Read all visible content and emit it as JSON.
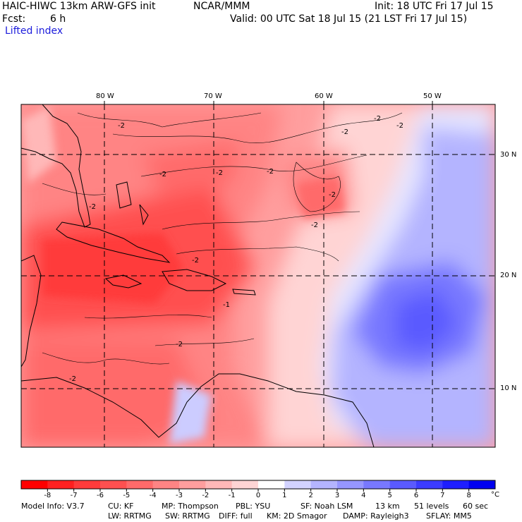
{
  "header": {
    "model": "HAIC-HIWC 13km ARW-GFS init",
    "org": "NCAR/MMM",
    "init": "Init: 18 UTC Fri 17 Jul 15",
    "fcst_label": "Fcst:",
    "fcst_value": "6 h",
    "valid": "Valid: 00 UTC Sat 18 Jul 15 (21 LST Fri 17 Jul 15)",
    "field": "Lifted index"
  },
  "map": {
    "lon_labels": [
      "80 W",
      "70 W",
      "60 W",
      "50 W"
    ],
    "lat_labels": [
      "30 N",
      "20 N",
      "10 N"
    ],
    "contour_labels": [
      "-2",
      "-2",
      "-2",
      "-2",
      "-2",
      "-2",
      "-2",
      "-2",
      "-2",
      "-1",
      "-2",
      "-2",
      "-2",
      "-2"
    ]
  },
  "colorbar": {
    "ticks": [
      "-8",
      "-7",
      "-6",
      "-5",
      "-4",
      "-3",
      "-2",
      "-1",
      "0",
      "1",
      "2",
      "3",
      "4",
      "5",
      "6",
      "7",
      "8"
    ],
    "unit": "°C",
    "colors": [
      "#ff0000",
      "#ff2020",
      "#ff3b3b",
      "#ff5050",
      "#ff6a6a",
      "#ff8484",
      "#ff9e9e",
      "#ffb8b8",
      "#ffd4d4",
      "#ffffff",
      "#d2d2ff",
      "#b4b4ff",
      "#9696ff",
      "#7878ff",
      "#5a5aff",
      "#3c3cff",
      "#1e1eff",
      "#0000f0"
    ]
  },
  "footer": {
    "line1": [
      "Model Info: V3.7",
      "CU: KF",
      "MP: Thompson",
      "PBL: YSU",
      "SF: Noah LSM",
      "13 km",
      "51 levels",
      "60 sec"
    ],
    "line2": [
      "LW: RRTMG",
      "SW: RRTMG",
      "DIFF: full",
      "KM: 2D Smagor",
      "DAMP: Rayleigh3",
      "SFLAY: MM5"
    ]
  }
}
